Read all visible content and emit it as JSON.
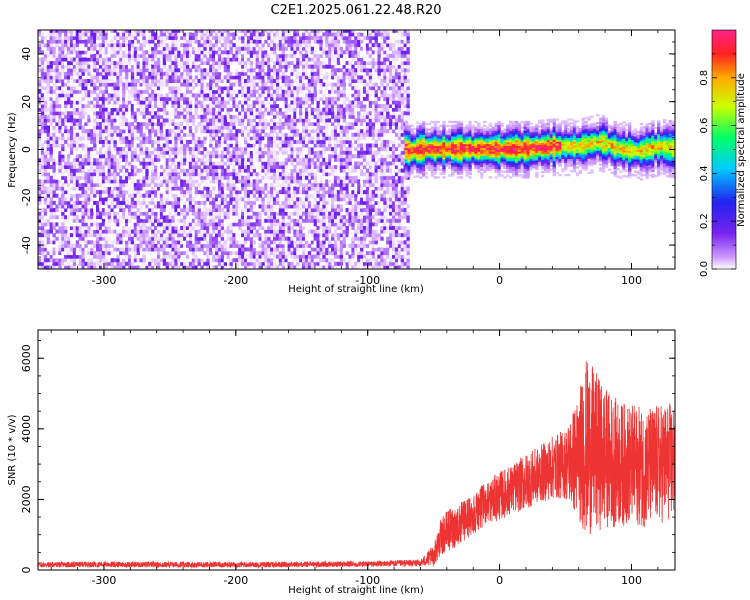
{
  "figure": {
    "title": "C2E1.2025.061.22.48.R20"
  },
  "colors": {
    "signal_line": "#ee3333",
    "colormap": [
      "#ffffff",
      "#cc99ff",
      "#7722ee",
      "#2222ee",
      "#00ccff",
      "#00ff66",
      "#ccff00",
      "#ffaa00",
      "#ff2222",
      "#ff2288"
    ]
  },
  "chart_data": [
    {
      "type": "heatmap",
      "xlabel": "Height of straight line (km)",
      "ylabel": "Frequency (Hz)",
      "xlim": [
        -350,
        133
      ],
      "ylim": [
        -50,
        50
      ],
      "xticks": [
        "-300",
        "-200",
        "-100",
        "0",
        "100"
      ],
      "xtick_values": [
        -300,
        -200,
        -100,
        0,
        100
      ],
      "yticks": [
        "-40",
        "-20",
        "0",
        "20",
        "40"
      ],
      "ytick_values": [
        -40,
        -20,
        0,
        20,
        40
      ],
      "colorbar": {
        "label": "Normalized spectral amplitude",
        "range": [
          0,
          1
        ],
        "ticks": [
          "0.0",
          "0.2",
          "0.4",
          "0.6",
          "0.8"
        ],
        "tick_values": [
          0.0,
          0.2,
          0.4,
          0.6,
          0.8
        ]
      },
      "regions": [
        {
          "name": "noise",
          "x_range": [
            -350,
            -70
          ],
          "freq_range": [
            -50,
            50
          ],
          "amplitude_range": [
            0.0,
            0.25
          ]
        },
        {
          "name": "carrier",
          "x_range": [
            -72,
            133
          ],
          "center_freq": 0,
          "peak_amplitude": 1.0
        }
      ],
      "carrier_center_freq": [
        {
          "x": -70,
          "f": -1
        },
        {
          "x": -60,
          "f": 0
        },
        {
          "x": -40,
          "f": 0
        },
        {
          "x": -20,
          "f": 0
        },
        {
          "x": 0,
          "f": 0
        },
        {
          "x": 20,
          "f": 0
        },
        {
          "x": 40,
          "f": 1
        },
        {
          "x": 60,
          "f": 1
        },
        {
          "x": 75,
          "f": 3
        },
        {
          "x": 90,
          "f": 0
        },
        {
          "x": 105,
          "f": -1
        },
        {
          "x": 120,
          "f": 1
        },
        {
          "x": 133,
          "f": 0
        }
      ]
    },
    {
      "type": "line",
      "xlabel": "Height of straight line (km)",
      "ylabel": "SNR (10 * v/v)",
      "xlim": [
        -350,
        133
      ],
      "ylim": [
        0,
        6800
      ],
      "xticks": [
        "-300",
        "-200",
        "-100",
        "0",
        "100"
      ],
      "xtick_values": [
        -300,
        -200,
        -100,
        0,
        100
      ],
      "yticks": [
        "0",
        "2000",
        "4000",
        "6000"
      ],
      "ytick_values": [
        0,
        2000,
        4000,
        6000
      ],
      "series": [
        {
          "x": [
            -350,
            -300,
            -250,
            -200,
            -150,
            -100,
            -60,
            -50,
            -45,
            -40,
            -30,
            -20,
            -10,
            0,
            10,
            20,
            30,
            40,
            50,
            60,
            65,
            70,
            80,
            90,
            100,
            110,
            120,
            133
          ],
          "y": [
            150,
            160,
            150,
            150,
            160,
            170,
            200,
            400,
            900,
            1100,
            1300,
            1600,
            1900,
            2100,
            2300,
            2500,
            2700,
            2900,
            3000,
            3200,
            3500,
            3400,
            3200,
            3000,
            3000,
            2900,
            3000,
            3100
          ],
          "y_spread": [
            80,
            80,
            80,
            80,
            80,
            80,
            100,
            300,
            500,
            600,
            600,
            600,
            600,
            700,
            700,
            800,
            800,
            900,
            1000,
            1800,
            2500,
            2400,
            2000,
            1800,
            1700,
            1700,
            1700,
            1700
          ]
        }
      ]
    }
  ]
}
